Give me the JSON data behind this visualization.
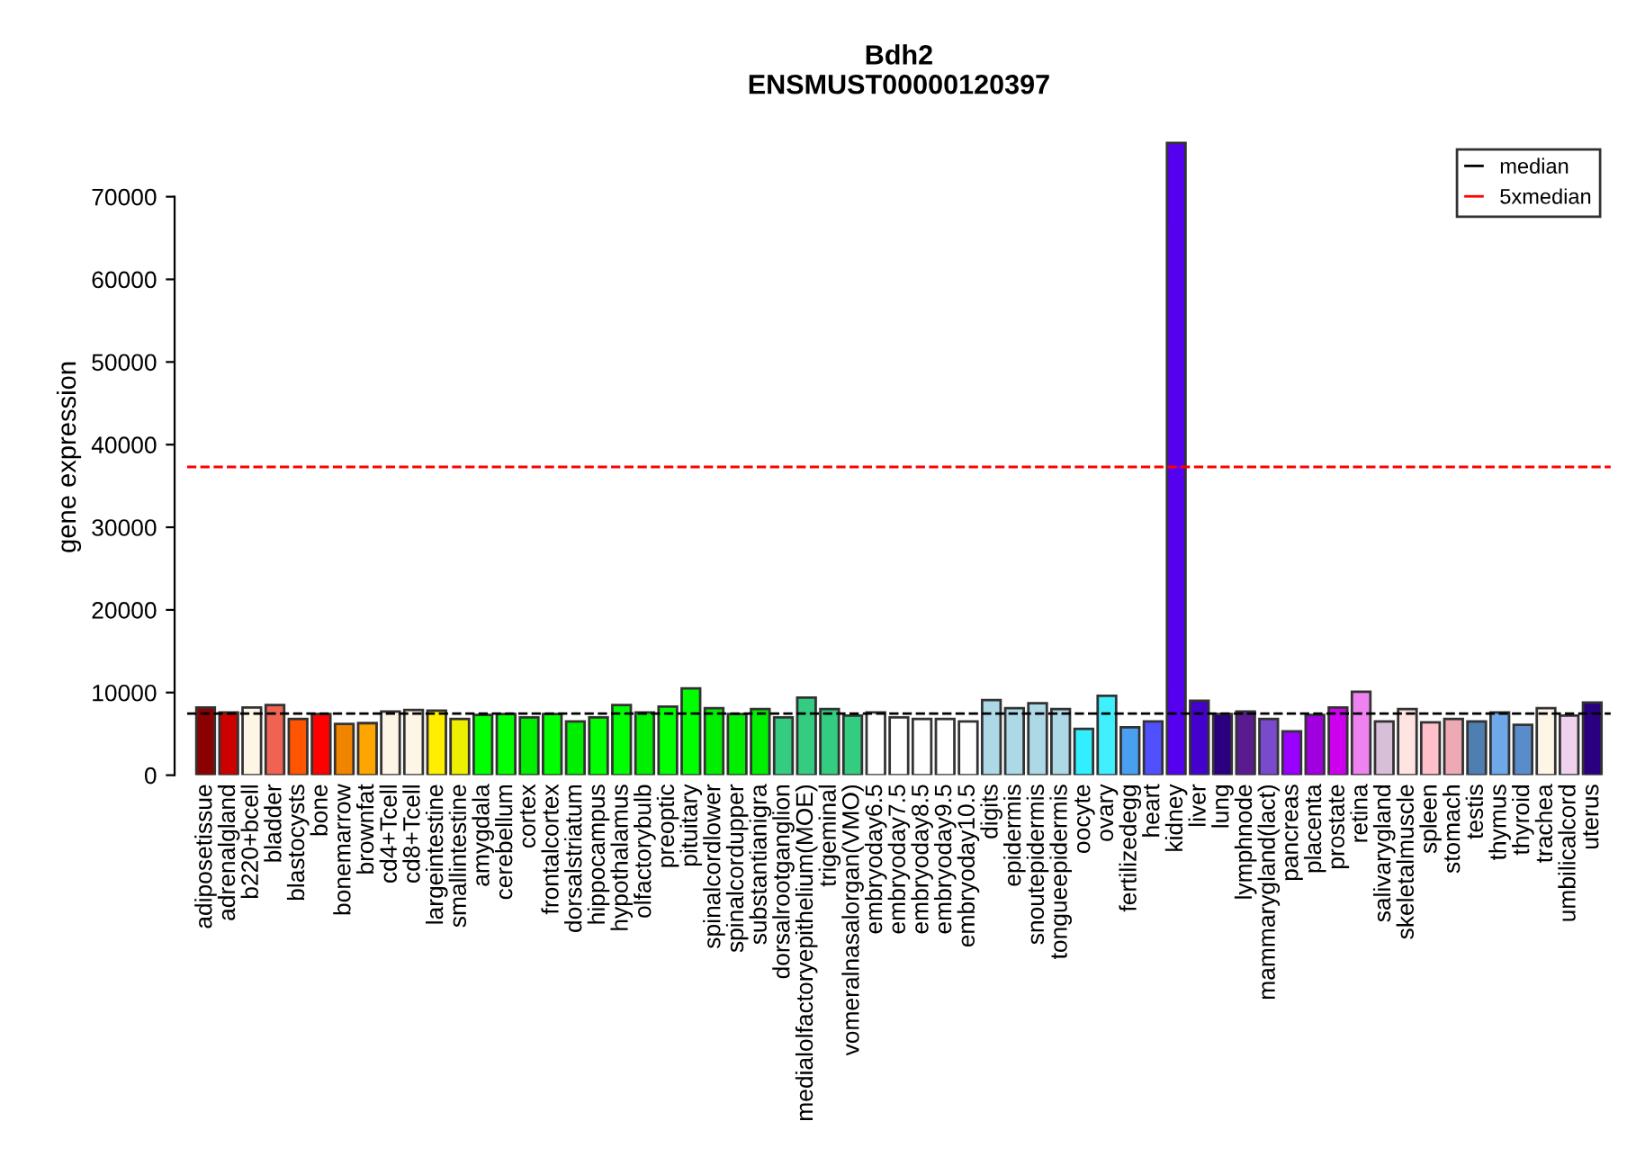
{
  "chart_data": {
    "type": "bar",
    "title": "Bdh2\nENSMUST00000120397",
    "ylabel": "gene expression",
    "categories": [
      "adiposetissue",
      "adrenalgland",
      "b220+bcell",
      "bladder",
      "blastocysts",
      "bone",
      "bonemarrow",
      "brownfat",
      "cd4+Tcell",
      "cd8+Tcell",
      "largeintestine",
      "smallintestine",
      "amygdala",
      "cerebellum",
      "cortex",
      "frontalcortex",
      "dorsalstriatum",
      "hippocampus",
      "hypothalamus",
      "olfactorybulb",
      "preoptic",
      "pituitary",
      "spinalcordlower",
      "spinalcordupper",
      "substantianigra",
      "dorsalrootganglion",
      "medialolfactoryepithelium(MOE)",
      "trigeminal",
      "vomeralnasalorgan(VMO)",
      "embryoday6.5",
      "embryoday7.5",
      "embryoday8.5",
      "embryoday9.5",
      "embryoday10.5",
      "digits",
      "epidermis",
      "snoutepidermis",
      "tongueepidermis",
      "oocyte",
      "ovary",
      "fertilizedegg",
      "heart",
      "kidney",
      "liver",
      "lung",
      "lymphnode",
      "mammarygland(lact)",
      "pancreas",
      "placenta",
      "prostate",
      "retina",
      "salivarygland",
      "skeletalmuscle",
      "spleen",
      "stomach",
      "testis",
      "thymus",
      "thyroid",
      "trachea",
      "umbilicalcord",
      "uterus"
    ],
    "values": [
      8200,
      7600,
      8200,
      8500,
      6800,
      7400,
      6200,
      6300,
      7700,
      7900,
      7800,
      6800,
      7300,
      7400,
      7000,
      7400,
      6500,
      7000,
      8500,
      7600,
      8300,
      10500,
      8100,
      7400,
      8000,
      7000,
      9400,
      8000,
      7200,
      7600,
      7000,
      6800,
      6800,
      6500,
      9100,
      8100,
      8700,
      8000,
      5600,
      9600,
      5800,
      6500,
      76500,
      9000,
      7400,
      7700,
      6800,
      5300,
      7300,
      8200,
      10100,
      6500,
      8000,
      6400,
      6800,
      6500,
      7600,
      6100,
      8100,
      7200,
      8800
    ],
    "colors": [
      "#8b0000",
      "#cd0000",
      "#fdf5e6",
      "#ee6351",
      "#ff5500",
      "#ff0000",
      "#f28500",
      "#ffa500",
      "#fdf5e6",
      "#fdf5e6",
      "#ffee00",
      "#eeee00",
      "#00ff00",
      "#00ff00",
      "#00ee00",
      "#00ff00",
      "#00ee00",
      "#00ff00",
      "#00ff00",
      "#00ee00",
      "#00ff00",
      "#00ff00",
      "#00ee00",
      "#00ee00",
      "#00ee00",
      "#33cc80",
      "#33cc80",
      "#33cc80",
      "#33cc80",
      "#ffffff",
      "#ffffff",
      "#ffffff",
      "#ffffff",
      "#ffffff",
      "#add8e6",
      "#add8e6",
      "#add8e6",
      "#add8e6",
      "#33eeff",
      "#40f0ff",
      "#4aa0f0",
      "#5050ff",
      "#5500ee",
      "#4400cc",
      "#2a0080",
      "#5a1a90",
      "#7a4acc",
      "#9900ff",
      "#a000e0",
      "#cc00ee",
      "#ee82ee",
      "#d8bfd8",
      "#ffe4e1",
      "#ffc0cb",
      "#eeaab4",
      "#4f7fb0",
      "#6fa8e8",
      "#5a8ccc",
      "#fdf5e6",
      "#eed2ee",
      "#2a0080"
    ],
    "ylim": [
      0,
      77000
    ],
    "yticks": [
      0,
      10000,
      20000,
      30000,
      40000,
      50000,
      60000,
      70000
    ],
    "ref_lines": [
      {
        "axis": "y",
        "value": 7460,
        "label": "median",
        "color": "#000000",
        "line_style": "dashed"
      },
      {
        "axis": "y",
        "value": 37300,
        "label": "5xmedian",
        "color": "#ff0000",
        "line_style": "dashed"
      }
    ],
    "legend": "top right",
    "grid": false
  }
}
